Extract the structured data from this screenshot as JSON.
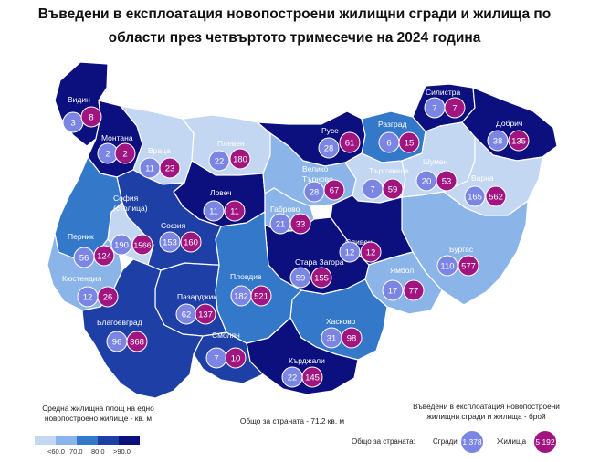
{
  "title": {
    "line1": "Въведени в експлоатация новопостроени жилищни сгради и жилища по",
    "line2": "области през четвъртото тримесечие на 2024 година"
  },
  "colors": {
    "c1": "#c3d6f2",
    "c2": "#8bb5e8",
    "c3": "#3478c9",
    "c4": "#1e3fa6",
    "c5": "#0c0f7e",
    "buildings": "#7b86e4",
    "dwellings": "#a0157f"
  },
  "regions": [
    {
      "name": "Видин",
      "buildings": "3",
      "dwellings": "8"
    },
    {
      "name": "Монтана",
      "buildings": "2",
      "dwellings": "2"
    },
    {
      "name": "Враца",
      "buildings": "11",
      "dwellings": "23"
    },
    {
      "name": "Плевен",
      "buildings": "22",
      "dwellings": "180"
    },
    {
      "name": "Ловеч",
      "buildings": "11",
      "dwellings": "11"
    },
    {
      "name": "Велико Търново",
      "buildings": "28",
      "dwellings": "67"
    },
    {
      "name": "Габрово",
      "buildings": "21",
      "dwellings": "33"
    },
    {
      "name": "Русе",
      "buildings": "28",
      "dwellings": "61"
    },
    {
      "name": "Разград",
      "buildings": "6",
      "dwellings": "15"
    },
    {
      "name": "Силистра",
      "buildings": "7",
      "dwellings": "7"
    },
    {
      "name": "Добрич",
      "buildings": "38",
      "dwellings": "135"
    },
    {
      "name": "Търговище",
      "buildings": "7",
      "dwellings": "59"
    },
    {
      "name": "Шумен",
      "buildings": "20",
      "dwellings": "53"
    },
    {
      "name": "Варна",
      "buildings": "165",
      "dwellings": "562"
    },
    {
      "name": "София (столица)",
      "buildings": "190",
      "dwellings": "1566"
    },
    {
      "name": "София",
      "buildings": "153",
      "dwellings": "160"
    },
    {
      "name": "Перник",
      "buildings": "56",
      "dwellings": "124"
    },
    {
      "name": "Кюстендил",
      "buildings": "12",
      "dwellings": "26"
    },
    {
      "name": "Благоевград",
      "buildings": "96",
      "dwellings": "368"
    },
    {
      "name": "Пазарджик",
      "buildings": "62",
      "dwellings": "137"
    },
    {
      "name": "Пловдив",
      "buildings": "182",
      "dwellings": "521"
    },
    {
      "name": "Смолян",
      "buildings": "7",
      "dwellings": "10"
    },
    {
      "name": "Стара Загора",
      "buildings": "59",
      "dwellings": "155"
    },
    {
      "name": "Сливен",
      "buildings": "12",
      "dwellings": "12"
    },
    {
      "name": "Ямбол",
      "buildings": "17",
      "dwellings": "77"
    },
    {
      "name": "Бургас",
      "buildings": "110",
      "dwellings": "577"
    },
    {
      "name": "Хасково",
      "buildings": "31",
      "dwellings": "98"
    },
    {
      "name": "Кърджали",
      "buildings": "22",
      "dwellings": "145"
    }
  ],
  "notes": {
    "left_line1": "Средна жилищна площ на едно",
    "left_line2": "новопостроено жилище - кв. м",
    "center": "Общо за страната - 71.2 кв. м",
    "right_line1": "Въведени в експлоатация новопостроени",
    "right_line2": "жилищни сгради и жилища - брой"
  },
  "legend": {
    "ticks": [
      "<60.0",
      "70.0",
      "80.0",
      ">90.0"
    ]
  },
  "totals": {
    "label": "Общо за страната:",
    "buildings_label": "Сгради",
    "buildings_value": "1 378",
    "dwellings_label": "Жилища",
    "dwellings_value": "5 192"
  }
}
